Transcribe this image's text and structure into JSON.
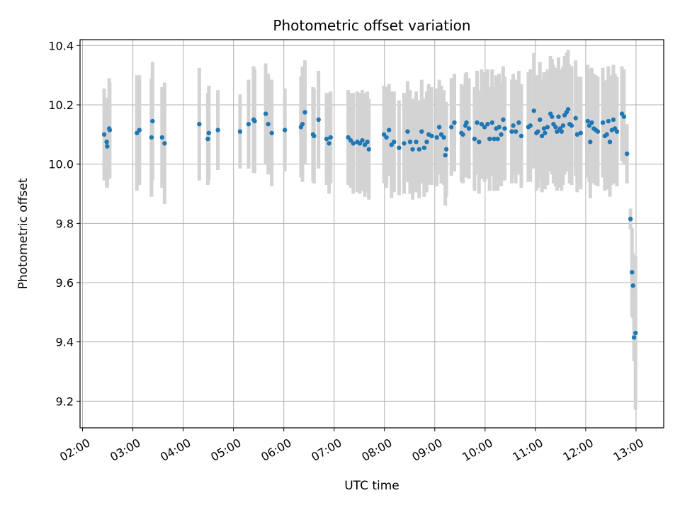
{
  "chart_data": {
    "type": "scatter",
    "title": "Photometric offset variation",
    "xlabel": "UTC time",
    "ylabel": "Photometric offset",
    "xlim": [
      1.95,
      13.55
    ],
    "ylim": [
      9.11,
      10.42
    ],
    "grid": true,
    "x_ticks": [
      {
        "value": 2,
        "label": "02:00"
      },
      {
        "value": 3,
        "label": "03:00"
      },
      {
        "value": 4,
        "label": "04:00"
      },
      {
        "value": 5,
        "label": "05:00"
      },
      {
        "value": 6,
        "label": "06:00"
      },
      {
        "value": 7,
        "label": "07:00"
      },
      {
        "value": 8,
        "label": "08:00"
      },
      {
        "value": 9,
        "label": "09:00"
      },
      {
        "value": 10,
        "label": "10:00"
      },
      {
        "value": 11,
        "label": "11:00"
      },
      {
        "value": 12,
        "label": "12:00"
      },
      {
        "value": 13,
        "label": "13:00"
      }
    ],
    "y_ticks": [
      {
        "value": 9.2,
        "label": "9.2"
      },
      {
        "value": 9.4,
        "label": "9.4"
      },
      {
        "value": 9.6,
        "label": "9.6"
      },
      {
        "value": 9.8,
        "label": "9.8"
      },
      {
        "value": 10.0,
        "label": "10.0"
      },
      {
        "value": 10.2,
        "label": "10.2"
      },
      {
        "value": 10.4,
        "label": "10.4"
      }
    ],
    "colors": {
      "point": "#1f77b4",
      "errorbar": "#d3d3d3",
      "grid": "#b0b0b0"
    },
    "series": [
      {
        "name": "offset",
        "points": [
          [
            2.43,
            10.1,
            0.155
          ],
          [
            2.48,
            10.075,
            0.15
          ],
          [
            2.49,
            10.06,
            0.14
          ],
          [
            2.53,
            10.12,
            0.17
          ],
          [
            2.54,
            10.115,
            0.16
          ],
          [
            3.08,
            10.105,
            0.195
          ],
          [
            3.13,
            10.115,
            0.185
          ],
          [
            3.37,
            10.09,
            0.2
          ],
          [
            3.39,
            10.145,
            0.2
          ],
          [
            3.58,
            10.09,
            0.17
          ],
          [
            3.63,
            10.07,
            0.205
          ],
          [
            4.32,
            10.135,
            0.19
          ],
          [
            4.49,
            10.085,
            0.155
          ],
          [
            4.51,
            10.105,
            0.16
          ],
          [
            4.69,
            10.115,
            0.135
          ],
          [
            5.13,
            10.11,
            0.125
          ],
          [
            5.3,
            10.135,
            0.15
          ],
          [
            5.4,
            10.15,
            0.18
          ],
          [
            5.42,
            10.145,
            0.175
          ],
          [
            5.64,
            10.17,
            0.17
          ],
          [
            5.69,
            10.135,
            0.17
          ],
          [
            5.76,
            10.105,
            0.18
          ],
          [
            6.02,
            10.115,
            0.14
          ],
          [
            6.34,
            10.125,
            0.17
          ],
          [
            6.37,
            10.135,
            0.195
          ],
          [
            6.42,
            10.175,
            0.175
          ],
          [
            6.58,
            10.1,
            0.16
          ],
          [
            6.6,
            10.095,
            0.16
          ],
          [
            6.69,
            10.15,
            0.165
          ],
          [
            6.85,
            10.085,
            0.155
          ],
          [
            6.9,
            10.07,
            0.17
          ],
          [
            6.93,
            10.09,
            0.155
          ],
          [
            7.28,
            10.09,
            0.16
          ],
          [
            7.33,
            10.08,
            0.16
          ],
          [
            7.38,
            10.07,
            0.17
          ],
          [
            7.46,
            10.075,
            0.17
          ],
          [
            7.51,
            10.07,
            0.17
          ],
          [
            7.56,
            10.08,
            0.17
          ],
          [
            7.61,
            10.065,
            0.175
          ],
          [
            7.66,
            10.075,
            0.17
          ],
          [
            7.69,
            10.05,
            0.17
          ],
          [
            7.99,
            10.1,
            0.165
          ],
          [
            8.04,
            10.09,
            0.17
          ],
          [
            8.09,
            10.115,
            0.155
          ],
          [
            8.14,
            10.065,
            0.18
          ],
          [
            8.19,
            10.075,
            0.17
          ],
          [
            8.29,
            10.055,
            0.16
          ],
          [
            8.39,
            10.07,
            0.17
          ],
          [
            8.46,
            10.11,
            0.17
          ],
          [
            8.51,
            10.075,
            0.175
          ],
          [
            8.56,
            10.05,
            0.17
          ],
          [
            8.63,
            10.075,
            0.17
          ],
          [
            8.69,
            10.05,
            0.165
          ],
          [
            8.74,
            10.11,
            0.175
          ],
          [
            8.79,
            10.055,
            0.165
          ],
          [
            8.84,
            10.075,
            0.17
          ],
          [
            8.88,
            10.1,
            0.17
          ],
          [
            8.94,
            10.095,
            0.165
          ],
          [
            9.04,
            10.09,
            0.165
          ],
          [
            9.09,
            10.125,
            0.16
          ],
          [
            9.13,
            10.1,
            0.165
          ],
          [
            9.18,
            10.09,
            0.16
          ],
          [
            9.21,
            10.03,
            0.17
          ],
          [
            9.23,
            10.05,
            0.16
          ],
          [
            9.33,
            10.125,
            0.165
          ],
          [
            9.39,
            10.14,
            0.165
          ],
          [
            9.53,
            10.105,
            0.165
          ],
          [
            9.56,
            10.1,
            0.165
          ],
          [
            9.61,
            10.13,
            0.175
          ],
          [
            9.63,
            10.14,
            0.17
          ],
          [
            9.68,
            10.12,
            0.17
          ],
          [
            9.79,
            10.085,
            0.175
          ],
          [
            9.84,
            10.14,
            0.175
          ],
          [
            9.88,
            10.075,
            0.175
          ],
          [
            9.93,
            10.135,
            0.185
          ],
          [
            9.99,
            10.125,
            0.185
          ],
          [
            10.05,
            10.135,
            0.185
          ],
          [
            10.09,
            10.085,
            0.175
          ],
          [
            10.14,
            10.14,
            0.18
          ],
          [
            10.18,
            10.085,
            0.175
          ],
          [
            10.22,
            10.12,
            0.18
          ],
          [
            10.25,
            10.085,
            0.175
          ],
          [
            10.28,
            10.125,
            0.18
          ],
          [
            10.32,
            10.1,
            0.175
          ],
          [
            10.36,
            10.15,
            0.18
          ],
          [
            10.39,
            10.12,
            0.175
          ],
          [
            10.53,
            10.11,
            0.175
          ],
          [
            10.56,
            10.13,
            0.175
          ],
          [
            10.61,
            10.11,
            0.175
          ],
          [
            10.67,
            10.14,
            0.175
          ],
          [
            10.72,
            10.095,
            0.175
          ],
          [
            10.86,
            10.125,
            0.185
          ],
          [
            10.9,
            10.13,
            0.19
          ],
          [
            10.97,
            10.18,
            0.195
          ],
          [
            11.02,
            10.105,
            0.195
          ],
          [
            11.05,
            10.11,
            0.19
          ],
          [
            11.09,
            10.15,
            0.195
          ],
          [
            11.13,
            10.095,
            0.19
          ],
          [
            11.17,
            10.12,
            0.19
          ],
          [
            11.19,
            10.105,
            0.19
          ],
          [
            11.24,
            10.125,
            0.195
          ],
          [
            11.3,
            10.17,
            0.195
          ],
          [
            11.33,
            10.16,
            0.195
          ],
          [
            11.36,
            10.135,
            0.2
          ],
          [
            11.4,
            10.125,
            0.2
          ],
          [
            11.43,
            10.11,
            0.2
          ],
          [
            11.46,
            10.16,
            0.2
          ],
          [
            11.49,
            10.12,
            0.2
          ],
          [
            11.52,
            10.11,
            0.2
          ],
          [
            11.55,
            10.13,
            0.2
          ],
          [
            11.58,
            10.165,
            0.2
          ],
          [
            11.62,
            10.175,
            0.2
          ],
          [
            11.65,
            10.185,
            0.2
          ],
          [
            11.68,
            10.135,
            0.2
          ],
          [
            11.72,
            10.13,
            0.2
          ],
          [
            11.8,
            10.155,
            0.195
          ],
          [
            11.83,
            10.1,
            0.195
          ],
          [
            11.9,
            10.105,
            0.19
          ],
          [
            12.04,
            10.145,
            0.19
          ],
          [
            12.07,
            10.13,
            0.19
          ],
          [
            12.09,
            10.075,
            0.19
          ],
          [
            12.12,
            10.14,
            0.185
          ],
          [
            12.16,
            10.12,
            0.185
          ],
          [
            12.2,
            10.115,
            0.185
          ],
          [
            12.24,
            10.11,
            0.185
          ],
          [
            12.34,
            10.14,
            0.185
          ],
          [
            12.38,
            10.095,
            0.185
          ],
          [
            12.42,
            10.1,
            0.185
          ],
          [
            12.45,
            10.145,
            0.185
          ],
          [
            12.48,
            10.075,
            0.185
          ],
          [
            12.52,
            10.115,
            0.185
          ],
          [
            12.55,
            10.15,
            0.185
          ],
          [
            12.58,
            10.12,
            0.185
          ],
          [
            12.62,
            10.11,
            0.185
          ],
          [
            12.72,
            10.17,
            0.16
          ],
          [
            12.76,
            10.16,
            0.16
          ],
          [
            12.82,
            10.035,
            0.1
          ],
          [
            12.89,
            9.815,
            0.035
          ],
          [
            12.92,
            9.635,
            0.15
          ],
          [
            12.94,
            9.59,
            0.11
          ],
          [
            12.96,
            9.415,
            0.08
          ],
          [
            12.99,
            9.43,
            0.26
          ]
        ]
      }
    ]
  }
}
